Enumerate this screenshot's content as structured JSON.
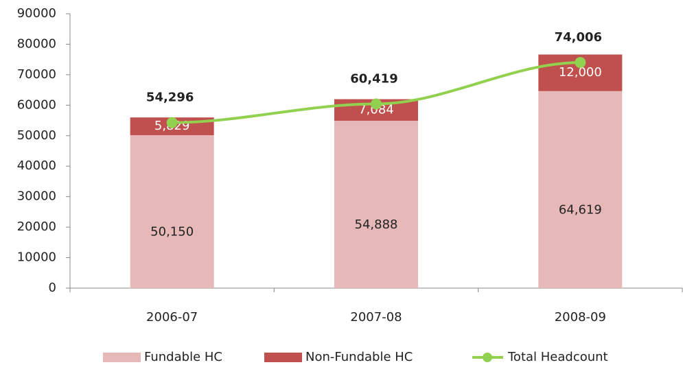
{
  "chart_data": {
    "type": "bar",
    "stacked": true,
    "grid": false,
    "legend": "bottom",
    "categories": [
      "2006-07",
      "2007-08",
      "2008-09"
    ],
    "ylim": [
      0,
      90000
    ],
    "yticks": [
      0,
      10000,
      20000,
      30000,
      40000,
      50000,
      60000,
      70000,
      80000,
      90000
    ],
    "series": [
      {
        "name": "Fundable HC",
        "type": "bar",
        "color": "#e6b9b8",
        "values": [
          50150,
          54888,
          64619
        ],
        "value_labels": [
          "50,150",
          "54,888",
          "64,619"
        ]
      },
      {
        "name": "Non-Fundable HC",
        "type": "bar",
        "color": "#c0504d",
        "values": [
          5829,
          7084,
          12000
        ],
        "value_labels": [
          "5,829",
          "7,084",
          "12,000"
        ]
      },
      {
        "name": "Total Headcount",
        "type": "line",
        "color": "#92d050",
        "values": [
          54296,
          60419,
          74006
        ],
        "value_labels": [
          "54,296",
          "60,419",
          "74,006"
        ]
      }
    ]
  }
}
